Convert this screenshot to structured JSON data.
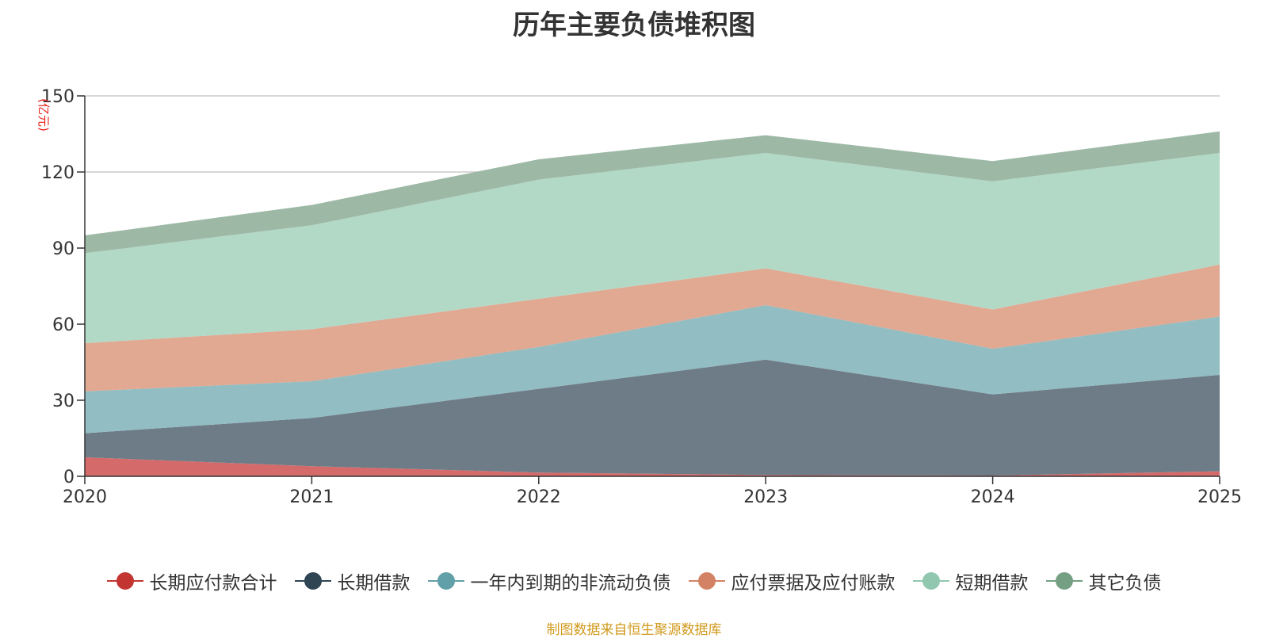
{
  "title": "历年主要负债堆积图",
  "source_note": "制图数据来自恒生聚源数据库",
  "colors": {
    "unit": "#e8211a",
    "source": "#d19a1d",
    "axis": "#333333",
    "grid": "#cccccc"
  },
  "chart_data": {
    "type": "area",
    "stacked": true,
    "title": "历年主要负债堆积图",
    "ylabel": "(亿元)",
    "xlabel": "",
    "x": [
      "2020",
      "2021",
      "2022",
      "2023",
      "2024",
      "2025"
    ],
    "ylim": [
      0,
      150
    ],
    "yticks": [
      0,
      30,
      60,
      90,
      120,
      150
    ],
    "grid": true,
    "legend_position": "bottom",
    "series": [
      {
        "name": "长期应付款合计",
        "values": [
          7.5,
          4,
          1.5,
          0.5,
          0.3,
          2
        ],
        "color": "#c23531",
        "fill": "#d46a69"
      },
      {
        "name": "长期借款",
        "values": [
          9.5,
          19,
          33,
          45.5,
          32,
          38
        ],
        "color": "#2f4554",
        "fill": "#6e7c88"
      },
      {
        "name": "一年内到期的非流动负债",
        "values": [
          16.5,
          14.5,
          16.5,
          21.5,
          18,
          23
        ],
        "color": "#61a0a8",
        "fill": "#92bdc2"
      },
      {
        "name": "应付票据及应付账款",
        "values": [
          19,
          20.5,
          19,
          14.5,
          15.5,
          20.5
        ],
        "color": "#d48265",
        "fill": "#e1a892"
      },
      {
        "name": "短期借款",
        "values": [
          35.5,
          41,
          47,
          45.5,
          50.5,
          44
        ],
        "color": "#91c7ae",
        "fill": "#b2d9c6"
      },
      {
        "name": "其它负债",
        "values": [
          7,
          8,
          8,
          7,
          8,
          8.5
        ],
        "color": "#749f83",
        "fill": "#9db9a6"
      }
    ]
  }
}
